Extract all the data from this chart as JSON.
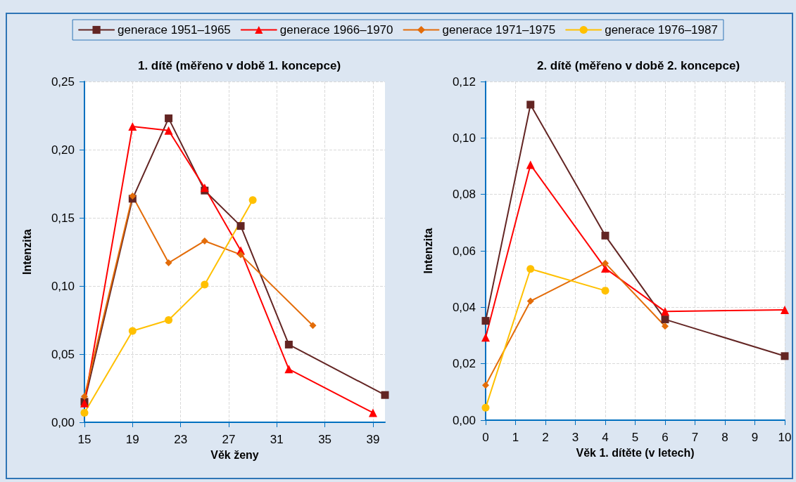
{
  "chart_data": [
    {
      "type": "line",
      "title": "1. dítě (měřeno v době 1. koncepce)",
      "xlabel": "Věk ženy",
      "ylabel": "Intenzita",
      "legend": "top",
      "grid": true,
      "xlim": [
        15,
        40
      ],
      "xticks": [
        15,
        19,
        23,
        27,
        31,
        35,
        39
      ],
      "ylim": [
        0,
        0.25
      ],
      "yticks": [
        {
          "value": 0,
          "label": "0,00"
        },
        {
          "value": 0.05,
          "label": "0,05"
        },
        {
          "value": 0.1,
          "label": "0,10"
        },
        {
          "value": 0.15,
          "label": "0,15"
        },
        {
          "value": 0.2,
          "label": "0,20"
        },
        {
          "value": 0.25,
          "label": "0,25"
        }
      ],
      "series": [
        {
          "name": "generace 1951–1965",
          "color": "#632523",
          "marker": "square",
          "x": [
            15,
            19,
            22,
            25,
            28,
            32,
            40
          ],
          "values": [
            0.015,
            0.164,
            0.223,
            0.17,
            0.144,
            0.057,
            0.02
          ]
        },
        {
          "name": "generace 1966–1970",
          "color": "#ff0000",
          "marker": "triangle",
          "x": [
            15,
            19,
            22,
            25,
            28,
            32,
            39
          ],
          "values": [
            0.014,
            0.217,
            0.214,
            0.172,
            0.126,
            0.039,
            0.007
          ]
        },
        {
          "name": "generace 1971–1975",
          "color": "#e36c09",
          "marker": "diamond",
          "x": [
            15,
            19,
            22,
            25,
            28,
            34
          ],
          "values": [
            0.019,
            0.166,
            0.117,
            0.133,
            0.123,
            0.071
          ]
        },
        {
          "name": "generace 1976–1987",
          "color": "#ffc000",
          "marker": "circle",
          "x": [
            15,
            19,
            22,
            25,
            29
          ],
          "values": [
            0.007,
            0.067,
            0.075,
            0.101,
            0.163
          ]
        }
      ]
    },
    {
      "type": "line",
      "title": "2. dítě (měřeno v době 2. koncepce)",
      "xlabel": "Věk 1. dítěte (v letech)",
      "ylabel": "Intenzita",
      "grid": true,
      "xlim": [
        0,
        10
      ],
      "xticks": [
        0,
        1,
        2,
        3,
        4,
        5,
        6,
        7,
        8,
        9,
        10
      ],
      "ylim": [
        0,
        0.12
      ],
      "yticks": [
        {
          "value": 0,
          "label": "0,00"
        },
        {
          "value": 0.02,
          "label": "0,02"
        },
        {
          "value": 0.04,
          "label": "0,04"
        },
        {
          "value": 0.06,
          "label": "0,06"
        },
        {
          "value": 0.08,
          "label": "0,08"
        },
        {
          "value": 0.1,
          "label": "0,10"
        },
        {
          "value": 0.12,
          "label": "0,12"
        }
      ],
      "series": [
        {
          "color": "#632523",
          "marker": "square",
          "x": [
            0,
            1.5,
            4,
            6,
            10
          ],
          "values": [
            0.0352,
            0.1118,
            0.0654,
            0.0357,
            0.0227
          ]
        },
        {
          "color": "#ff0000",
          "marker": "triangle",
          "x": [
            0,
            1.5,
            4,
            6,
            10
          ],
          "values": [
            0.0293,
            0.0905,
            0.0538,
            0.0385,
            0.0391
          ]
        },
        {
          "color": "#e36c09",
          "marker": "diamond",
          "x": [
            0,
            1.5,
            4,
            6
          ],
          "values": [
            0.0124,
            0.0422,
            0.0556,
            0.0333
          ]
        },
        {
          "color": "#ffc000",
          "marker": "circle",
          "x": [
            0,
            1.5,
            4
          ],
          "values": [
            0.0044,
            0.0536,
            0.0459
          ]
        }
      ]
    }
  ]
}
